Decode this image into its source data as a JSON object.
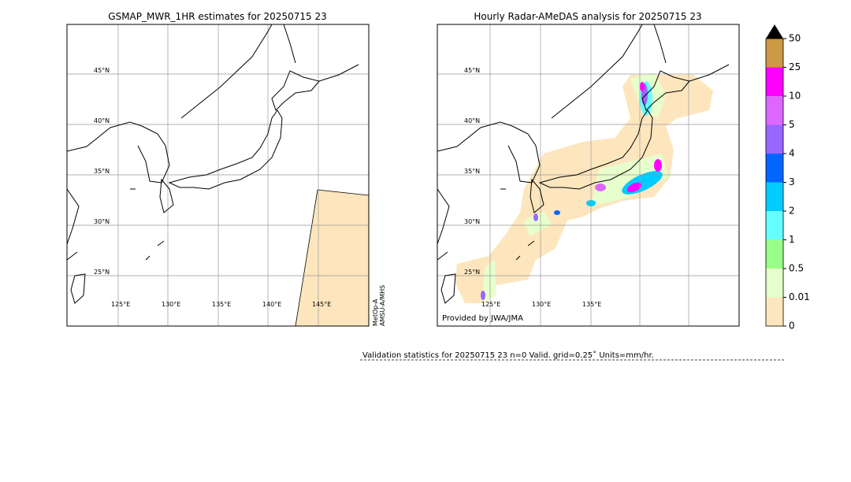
{
  "left_panel": {
    "title": "GSMAP_MWR_1HR estimates for 20250715 23",
    "lat_labels": [
      "45°N",
      "40°N",
      "35°N",
      "30°N",
      "25°N"
    ],
    "lon_labels": [
      "125°E",
      "130°E",
      "135°E",
      "140°E",
      "145°E"
    ],
    "satellite": [
      "MetOp-A",
      "AMSU-A/MHS"
    ]
  },
  "right_panel": {
    "title": "Hourly Radar-AMeDAS analysis for 20250715 23",
    "lat_labels": [
      "45°N",
      "40°N",
      "35°N",
      "30°N",
      "25°N"
    ],
    "lon_labels": [
      "125°E",
      "130°E",
      "135°E"
    ],
    "credit": "Provided by JWA/JMA"
  },
  "colorbar": {
    "ticks": [
      0,
      0.01,
      0.5,
      1,
      2,
      3,
      4,
      5,
      10,
      25,
      50
    ],
    "colors": [
      "#fde6bd",
      "#e6ffcc",
      "#99ff88",
      "#66ffff",
      "#00ccff",
      "#0066ff",
      "#9966ff",
      "#dd66ff",
      "#ff00ff",
      "#cc9944"
    ]
  },
  "validation": "Validation statistics for 20250715 23  n=0 Valid. grid=0.25˚ Units=mm/hr."
}
